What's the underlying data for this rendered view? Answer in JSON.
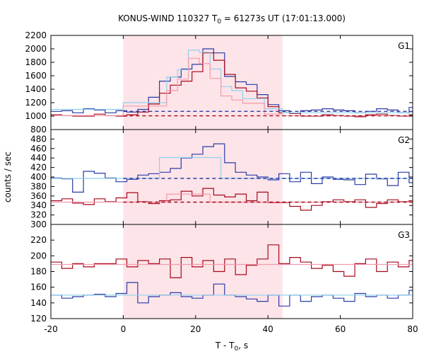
{
  "title_parts": {
    "main": "KONUS-WIND 110327 T",
    "sub": "0",
    "rest": " = 61273s UT (17:01:13.000)"
  },
  "colors": {
    "blue": "#2b3ba6",
    "lightblue": "#8fd0ee",
    "red": "#a5091a",
    "pink": "#f29aae",
    "shade": "#fde4e8"
  },
  "chart_data": {
    "type": "line",
    "x": {
      "label_main": "T - T",
      "label_sub": "0",
      "label_rest": ", s",
      "range": [
        -20,
        80
      ],
      "ticks": [
        -20,
        0,
        20,
        40,
        60,
        80
      ],
      "tick_labels": [
        "-20",
        "0",
        "20",
        "40",
        "60",
        "80"
      ]
    },
    "ylabel": "counts / sec",
    "shaded_interval": [
      0,
      44
    ],
    "panels": [
      {
        "name": "G1",
        "ylim": [
          800,
          2200
        ],
        "ticks": [
          800,
          1000,
          1200,
          1400,
          1600,
          1800,
          2000,
          2200
        ],
        "tick_labels": [
          "800",
          "1000",
          "1200",
          "1400",
          "1600",
          "1800",
          "2000",
          "2200"
        ],
        "bin_start": -20,
        "bin_width": 3,
        "series": [
          {
            "color": "blue",
            "values": [
              1070,
              1080,
              1050,
              1110,
              1090,
              1050,
              1080,
              1060,
              1100,
              1280,
              1520,
              1580,
              1700,
              1770,
              2000,
              1940,
              1590,
              1510,
              1470,
              1320,
              1170,
              1080,
              1040,
              1080,
              1090,
              1110,
              1090,
              1080,
              1050,
              1070,
              1110,
              1090,
              1050,
              1130
            ]
          },
          {
            "color": "red",
            "values": [
              1020,
              1010,
              1000,
              1000,
              1030,
              1010,
              1000,
              1020,
              1060,
              1180,
              1340,
              1460,
              1520,
              1660,
              1940,
              1830,
              1620,
              1420,
              1370,
              1270,
              1140,
              1050,
              1040,
              1000,
              1000,
              1020,
              1010,
              1000,
              990,
              1020,
              1030,
              1010,
              1000,
              1020
            ]
          },
          {
            "color": "lightblue",
            "segments": [
              {
                "x": [
                  -20,
                  0
                ],
                "value": 1100
              },
              {
                "x": [
                  0,
                  12
                ],
                "value": 1200
              },
              {
                "x": [
                  12,
                  15
                ],
                "value": 1580
              },
              {
                "x": [
                  15,
                  18
                ],
                "value": 1690
              },
              {
                "x": [
                  18,
                  21
                ],
                "value": 1980
              },
              {
                "x": [
                  21,
                  24
                ],
                "value": 1950
              },
              {
                "x": [
                  24,
                  27
                ],
                "value": 1700
              },
              {
                "x": [
                  27,
                  30
                ],
                "value": 1440
              },
              {
                "x": [
                  30,
                  33
                ],
                "value": 1380
              },
              {
                "x": [
                  33,
                  39
                ],
                "value": 1260
              },
              {
                "x": [
                  39,
                  44
                ],
                "value": 1110
              },
              {
                "x": [
                  44,
                  80
                ],
                "value": 1050
              }
            ]
          },
          {
            "color": "pink",
            "segments": [
              {
                "x": [
                  -20,
                  0
                ],
                "value": 1010
              },
              {
                "x": [
                  0,
                  12
                ],
                "value": 1150
              },
              {
                "x": [
                  12,
                  15
                ],
                "value": 1380
              },
              {
                "x": [
                  15,
                  18
                ],
                "value": 1550
              },
              {
                "x": [
                  18,
                  21
                ],
                "value": 1860
              },
              {
                "x": [
                  21,
                  24
                ],
                "value": 1780
              },
              {
                "x": [
                  24,
                  27
                ],
                "value": 1560
              },
              {
                "x": [
                  27,
                  30
                ],
                "value": 1300
              },
              {
                "x": [
                  30,
                  33
                ],
                "value": 1240
              },
              {
                "x": [
                  33,
                  39
                ],
                "value": 1190
              },
              {
                "x": [
                  39,
                  44
                ],
                "value": 1030
              },
              {
                "x": [
                  44,
                  80
                ],
                "value": 1005
              }
            ]
          }
        ],
        "dashed": [
          {
            "color": "blue",
            "x": [
              0,
              80
            ],
            "value": 1070
          },
          {
            "color": "red",
            "x": [
              0,
              80
            ],
            "value": 1005
          }
        ]
      },
      {
        "name": "G2",
        "ylim": [
          300,
          500
        ],
        "ticks": [
          300,
          320,
          340,
          360,
          380,
          400,
          420,
          440,
          460,
          480
        ],
        "tick_labels": [
          "300",
          "320",
          "340",
          "360",
          "380",
          "400",
          "420",
          "440",
          "460",
          "480"
        ],
        "bin_start": -20,
        "bin_width": 3,
        "series": [
          {
            "color": "blue",
            "values": [
              398,
              396,
              368,
              412,
              408,
              398,
              390,
              395,
              404,
              407,
              410,
              418,
              440,
              448,
              464,
              470,
              430,
              410,
              404,
              400,
              394,
              407,
              390,
              410,
              386,
              400,
              395,
              394,
              384,
              406,
              396,
              382,
              410,
              388
            ]
          },
          {
            "color": "red",
            "values": [
              350,
              354,
              345,
              342,
              354,
              348,
              356,
              367,
              348,
              344,
              350,
              352,
              370,
              360,
              376,
              362,
              358,
              364,
              350,
              368,
              346,
              346,
              338,
              330,
              340,
              348,
              352,
              348,
              352,
              336,
              344,
              352,
              348,
              350
            ]
          },
          {
            "color": "lightblue",
            "segments": [
              {
                "x": [
                  -20,
                  10
                ],
                "value": 397
              },
              {
                "x": [
                  10,
                  27
                ],
                "value": 441
              },
              {
                "x": [
                  27,
                  80
                ],
                "value": 397
              }
            ]
          },
          {
            "color": "pink",
            "segments": [
              {
                "x": [
                  -20,
                  12
                ],
                "value": 347
              },
              {
                "x": [
                  12,
                  24
                ],
                "value": 364
              },
              {
                "x": [
                  24,
                  80
                ],
                "value": 347
              }
            ]
          }
        ],
        "dashed": [
          {
            "color": "blue",
            "x": [
              0,
              80
            ],
            "value": 397
          },
          {
            "color": "red",
            "x": [
              0,
              80
            ],
            "value": 347
          }
        ]
      },
      {
        "name": "G3",
        "ylim": [
          120,
          240
        ],
        "ticks": [
          120,
          140,
          160,
          180,
          200,
          220
        ],
        "tick_labels": [
          "120",
          "140",
          "160",
          "180",
          "200",
          "220"
        ],
        "bin_start": -20,
        "bin_width": 3,
        "series": [
          {
            "color": "blue",
            "values": [
              150,
              146,
              148,
              150,
              151,
              148,
              152,
              166,
              140,
              148,
              150,
              153,
              148,
              146,
              150,
              164,
              150,
              148,
              145,
              142,
              150,
              136,
              150,
              142,
              148,
              150,
              146,
              142,
              152,
              148,
              150,
              146,
              150,
              156
            ]
          },
          {
            "color": "red",
            "values": [
              192,
              184,
              190,
              186,
              190,
              190,
              196,
              186,
              194,
              190,
              196,
              172,
              198,
              186,
              194,
              180,
              196,
              176,
              188,
              196,
              214,
              190,
              198,
              192,
              184,
              188,
              180,
              174,
              190,
              196,
              180,
              192,
              186,
              194
            ]
          },
          {
            "color": "lightblue",
            "segments": [
              {
                "x": [
                  -20,
                  80
                ],
                "value": 150
              }
            ]
          },
          {
            "color": "pink",
            "segments": [
              {
                "x": [
                  -20,
                  80
                ],
                "value": 189
              }
            ]
          }
        ],
        "dashed": []
      }
    ]
  }
}
